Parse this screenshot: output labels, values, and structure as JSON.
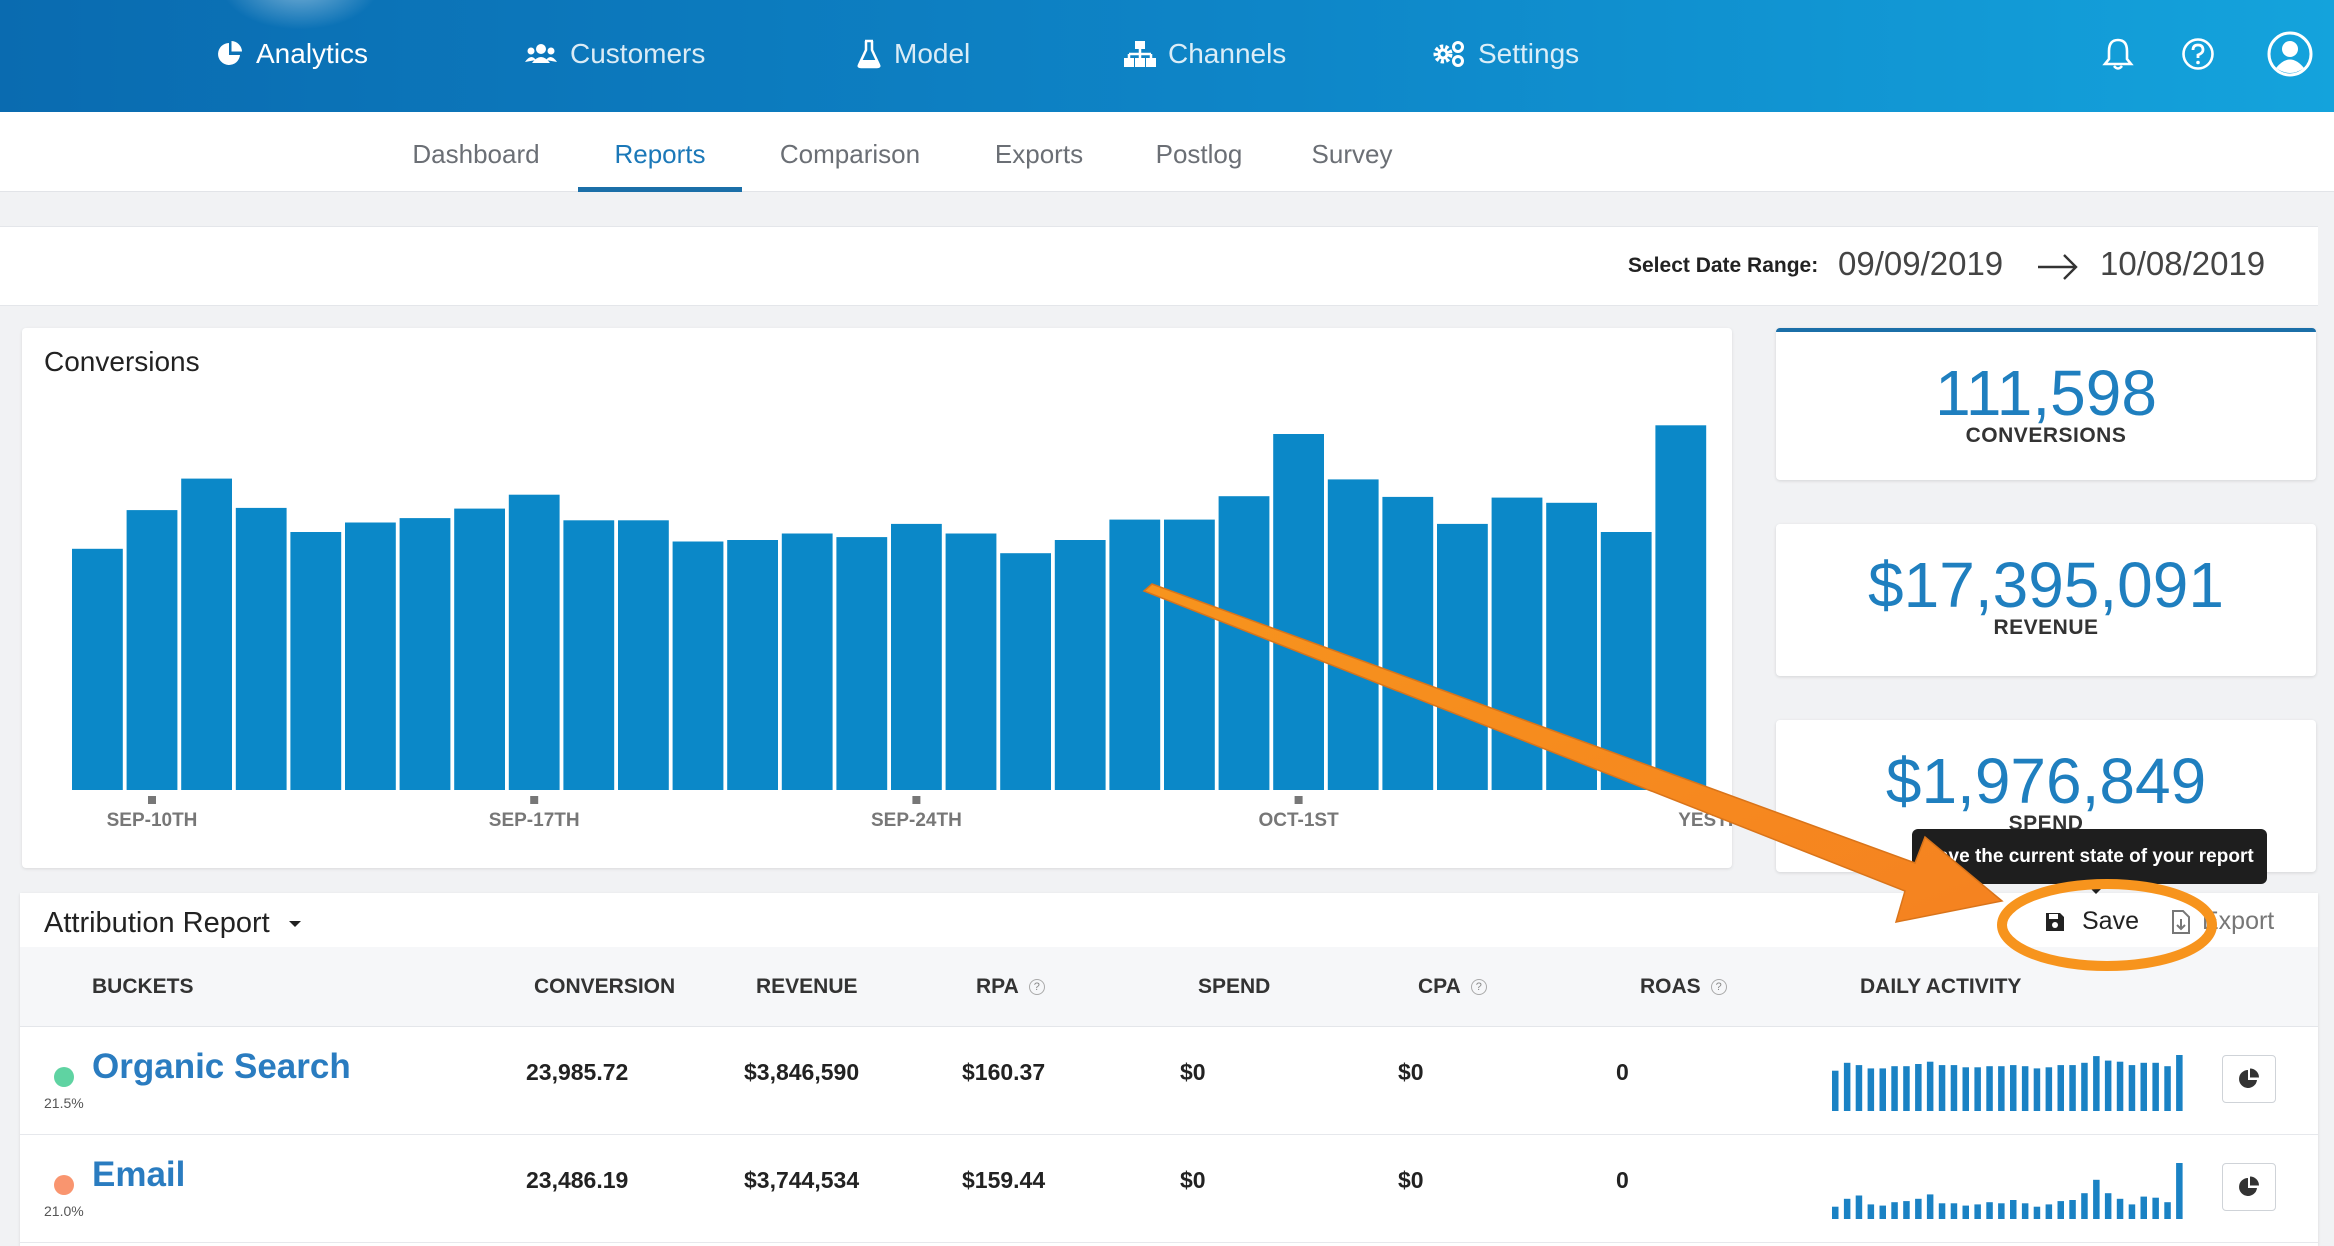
{
  "nav": {
    "items": [
      {
        "label": "Analytics",
        "icon": "pie-chart-icon"
      },
      {
        "label": "Customers",
        "icon": "users-icon"
      },
      {
        "label": "Model",
        "icon": "flask-icon"
      },
      {
        "label": "Channels",
        "icon": "sitemap-icon"
      },
      {
        "label": "Settings",
        "icon": "gears-icon"
      }
    ],
    "right_icons": [
      "bell-icon",
      "help-circle-icon",
      "user-avatar-icon"
    ]
  },
  "subnav": {
    "tabs": [
      {
        "label": "Dashboard"
      },
      {
        "label": "Reports",
        "active": true
      },
      {
        "label": "Comparison"
      },
      {
        "label": "Exports"
      },
      {
        "label": "Postlog"
      },
      {
        "label": "Survey"
      }
    ]
  },
  "date_range": {
    "label": "Select Date Range:",
    "start": "09/09/2019",
    "end": "10/08/2019"
  },
  "chart": {
    "title": "Conversions"
  },
  "chart_data": {
    "type": "bar",
    "title": "Conversions",
    "x_tick_labels": [
      "SEP-10TH",
      "SEP-17TH",
      "SEP-24TH",
      "OCT-1ST",
      "YESTERDAY"
    ],
    "x_tick_positions": [
      2,
      9,
      16,
      23,
      30
    ],
    "values": [
      3300,
      3830,
      4260,
      3860,
      3530,
      3660,
      3720,
      3850,
      4040,
      3690,
      3690,
      3400,
      3420,
      3510,
      3460,
      3640,
      3510,
      3240,
      3420,
      3700,
      3700,
      4020,
      4870,
      4250,
      4010,
      3640,
      4000,
      3930,
      3530,
      4990
    ],
    "color": "#0b88c8",
    "grid": false,
    "legend": false
  },
  "kpis": [
    {
      "value": "111,598",
      "label": "CONVERSIONS"
    },
    {
      "value": "$17,395,091",
      "label": "REVENUE"
    },
    {
      "value": "$1,976,849",
      "label": "SPEND"
    }
  ],
  "report": {
    "title": "Attribution Report",
    "save_label": "Save",
    "export_label": "Export",
    "tooltip": "Save the current state of your report",
    "columns": [
      "BUCKETS",
      "CONVERSION",
      "REVENUE",
      "RPA",
      "SPEND",
      "CPA",
      "ROAS",
      "DAILY ACTIVITY"
    ],
    "help_mark": "?",
    "rows": [
      {
        "name": "Organic Search",
        "pct": "21.5%",
        "color": "#5fd3a2",
        "conversion": "23,985.72",
        "revenue": "$3,846,590",
        "rpa": "$160.37",
        "spend": "$0",
        "cpa": "$0",
        "roas": "0",
        "activity": [
          0.72,
          0.86,
          0.82,
          0.76,
          0.76,
          0.8,
          0.8,
          0.84,
          0.88,
          0.82,
          0.82,
          0.78,
          0.78,
          0.8,
          0.8,
          0.82,
          0.8,
          0.76,
          0.78,
          0.82,
          0.82,
          0.86,
          0.98,
          0.9,
          0.88,
          0.82,
          0.86,
          0.86,
          0.8,
          1.0
        ]
      },
      {
        "name": "Email",
        "pct": "21.0%",
        "color": "#f9956f",
        "conversion": "23,486.19",
        "revenue": "$3,744,534",
        "rpa": "$159.44",
        "spend": "$0",
        "cpa": "$0",
        "roas": "0",
        "activity": [
          0.22,
          0.36,
          0.42,
          0.26,
          0.24,
          0.3,
          0.32,
          0.36,
          0.44,
          0.28,
          0.28,
          0.24,
          0.26,
          0.3,
          0.28,
          0.34,
          0.28,
          0.22,
          0.26,
          0.32,
          0.34,
          0.46,
          0.7,
          0.46,
          0.36,
          0.26,
          0.4,
          0.38,
          0.3,
          1.0
        ]
      }
    ]
  },
  "colors": {
    "accent": "#1b6fa8",
    "annotation": "#f7941d"
  }
}
